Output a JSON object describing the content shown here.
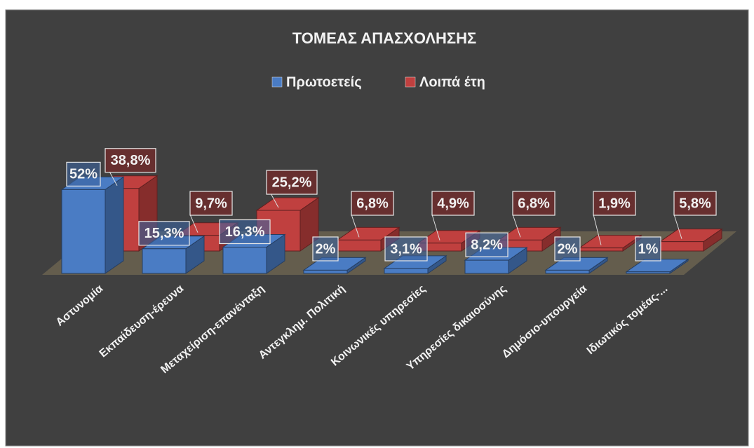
{
  "chart_data": {
    "type": "bar3d",
    "title": "ΤΟΜΕΑΣ ΑΠΑΣΧΟΛΗΣΗΣ",
    "categories": [
      "Αστυνομία",
      "Εκπαίδευση-έρευνα",
      "Μεταχείριση-επανένταξη",
      "Αντεγκλημ. Πολιτική",
      "Κοινωνικές υπηρεσίες",
      "Υπηρεσίες δικαιοσύνης",
      "Δημόσιο-υπουργεία",
      "Ιδιωτικός τομέας-..."
    ],
    "series": [
      {
        "name": "Πρωτοετείς",
        "color": "#4a7cc4",
        "values": [
          52,
          15.3,
          16.3,
          2,
          3.1,
          8.2,
          2,
          1
        ],
        "value_labels": [
          "52%",
          "15,3%",
          "16,3%",
          "2%",
          "3,1%",
          "8,2%",
          "2%",
          "1%"
        ]
      },
      {
        "name": "Λοιπά έτη",
        "color": "#c0403f",
        "values": [
          38.8,
          9.7,
          25.2,
          6.8,
          4.9,
          6.8,
          1.9,
          5.8
        ],
        "value_labels": [
          "38,8%",
          "9,7%",
          "25,2%",
          "6,8%",
          "4,9%",
          "6,8%",
          "1,9%",
          "5,8%"
        ]
      }
    ],
    "legend": "top"
  }
}
